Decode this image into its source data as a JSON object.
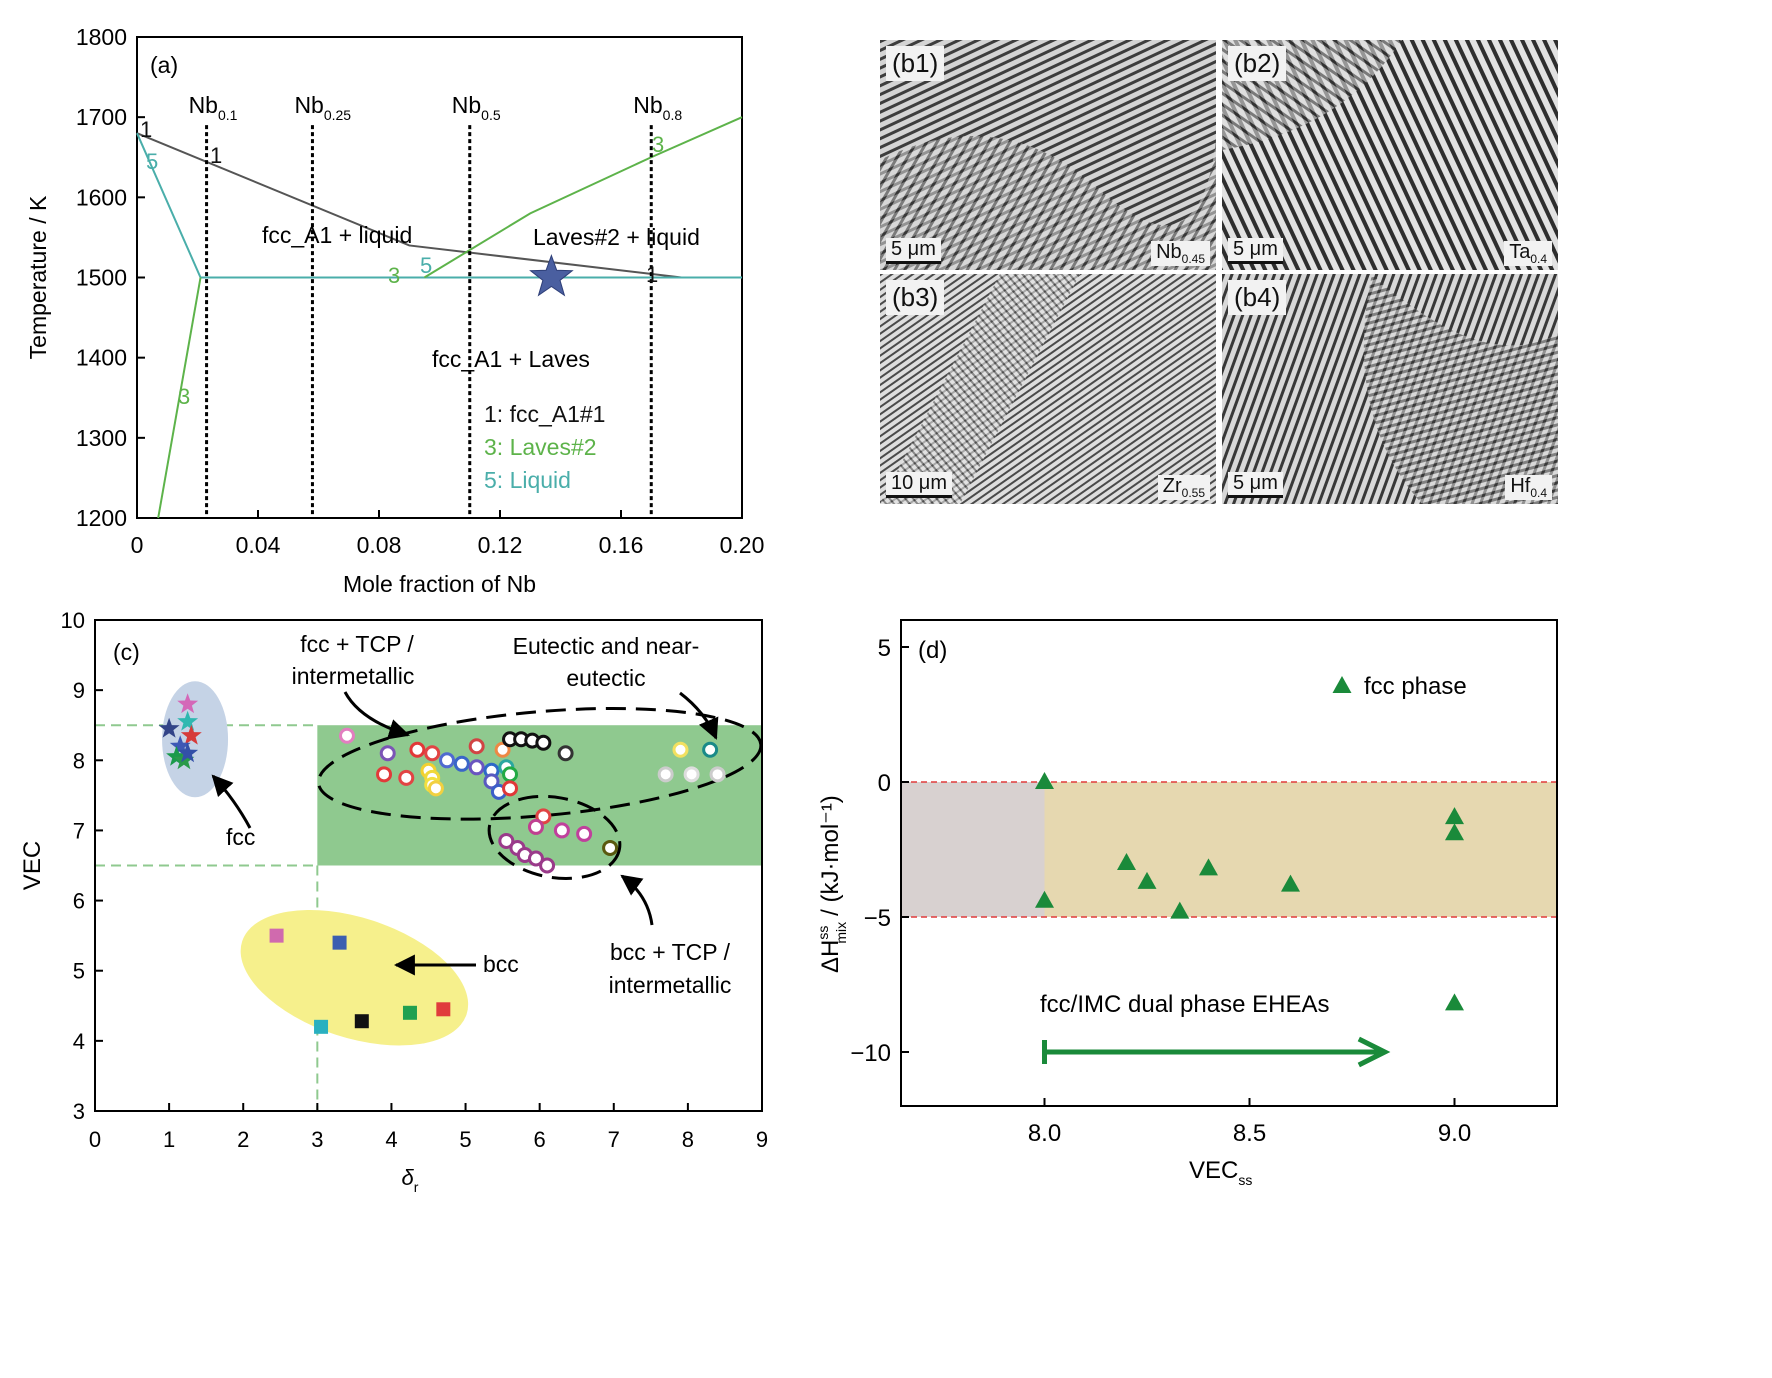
{
  "panel_a": {
    "label": "(a)",
    "ylabel": "Temperature / K",
    "xlabel": "Mole fraction of Nb",
    "xticks": [
      "0",
      "0.04",
      "0.08",
      "0.12",
      "0.16",
      "0.20"
    ],
    "yticks": [
      "1200",
      "1300",
      "1400",
      "1500",
      "1600",
      "1700",
      "1800"
    ],
    "region_labels": [
      "fcc_A1 + liquid",
      "Laves#2 + liquid",
      "fcc_A1 + Laves"
    ],
    "legend": [
      "1: fcc_A1#1",
      "3: Laves#2",
      "5: Liquid"
    ],
    "compositions": [
      {
        "base": "Nb",
        "sub": "0.1"
      },
      {
        "base": "Nb",
        "sub": "0.25"
      },
      {
        "base": "Nb",
        "sub": "0.5"
      },
      {
        "base": "Nb",
        "sub": "0.8"
      }
    ],
    "curve_labels": [
      "1",
      "5",
      "1",
      "3",
      "5",
      "3",
      "3",
      "1"
    ]
  },
  "panel_b": [
    {
      "label": "(b1)",
      "scale": "5 μm",
      "comp": "Nb",
      "sub": "0.45"
    },
    {
      "label": "(b2)",
      "scale": "5 μm",
      "comp": "Ta",
      "sub": "0.4"
    },
    {
      "label": "(b3)",
      "scale": "10 μm",
      "comp": "Zr",
      "sub": "0.55"
    },
    {
      "label": "(b4)",
      "scale": "5 μm",
      "comp": "Hf",
      "sub": "0.4"
    }
  ],
  "panel_c": {
    "label": "(c)",
    "ylabel": "VEC",
    "xlabel_base": "δ",
    "xlabel_sub": "r",
    "xticks": [
      "0",
      "1",
      "2",
      "3",
      "4",
      "5",
      "6",
      "7",
      "8",
      "9"
    ],
    "yticks": [
      "3",
      "4",
      "5",
      "6",
      "7",
      "8",
      "9",
      "10"
    ],
    "annotations": {
      "fcc_tcp": [
        "fcc + TCP /",
        "intermetallic"
      ],
      "eutectic": [
        "Eutectic and near-",
        "eutectic"
      ],
      "fcc": "fcc",
      "bcc": "bcc",
      "bcc_tcp": [
        "bcc + TCP /",
        "intermetallic"
      ]
    }
  },
  "panel_d": {
    "label": "(d)",
    "ylabel_main": "ΔH",
    "ylabel_sup": "ss",
    "ylabel_sub": "mix",
    "ylabel_unit": "/ (kJ·mol⁻¹)",
    "xlabel_main": "VEC",
    "xlabel_sub": "ss",
    "xticks": [
      "8.0",
      "8.5",
      "9.0"
    ],
    "yticks": [
      "5",
      "0",
      "−5",
      "−10"
    ],
    "legend": "fcc phase",
    "arrow_label": "fcc/IMC dual phase EHEAs"
  },
  "chart_data": [
    {
      "type": "line",
      "panel": "a",
      "title": "",
      "xlabel": "Mole fraction of Nb",
      "ylabel": "Temperature / K",
      "xlim": [
        0,
        0.2
      ],
      "ylim": [
        1200,
        1800
      ],
      "series": [
        {
          "name": "1: fcc_A1#1",
          "color": "#555555",
          "x": [
            0,
            0.09,
            0.18
          ],
          "y": [
            1680,
            1540,
            1500
          ]
        },
        {
          "name": "5: Liquid",
          "color": "#4aaeaa",
          "x": [
            0,
            0.021,
            0.2
          ],
          "y": [
            1680,
            1500,
            1500
          ]
        },
        {
          "name": "3: Laves#2",
          "color": "#5db34a",
          "x": [
            0.007,
            0.021
          ],
          "y": [
            1200,
            1500
          ]
        },
        {
          "name": "3: Laves#2",
          "color": "#5db34a",
          "x": [
            0.095,
            0.13,
            0.17,
            0.2
          ],
          "y": [
            1500,
            1580,
            1650,
            1700
          ]
        }
      ],
      "verticals": [
        0.023,
        0.058,
        0.11,
        0.17
      ],
      "marker": {
        "x": 0.137,
        "y": 1500,
        "shape": "star",
        "color": "#4a5fa0"
      }
    },
    {
      "type": "scatter",
      "panel": "c",
      "xlabel": "δr",
      "ylabel": "VEC",
      "xlim": [
        0,
        9
      ],
      "ylim": [
        3,
        10
      ],
      "shaded_region": {
        "x": [
          3,
          9
        ],
        "y": [
          6.5,
          8.5
        ],
        "color": "#8fc98f"
      },
      "guide_lines": {
        "y": [
          8.5,
          6.5
        ],
        "x": [
          3
        ]
      },
      "series": [
        {
          "name": "fcc",
          "marker": "star",
          "points": [
            [
              1.0,
              8.45
            ],
            [
              1.25,
              8.8
            ],
            [
              1.25,
              8.55
            ],
            [
              1.3,
              8.35
            ],
            [
              1.15,
              8.2
            ],
            [
              1.1,
              8.05
            ],
            [
              1.2,
              8.0
            ],
            [
              1.25,
              8.1
            ]
          ]
        },
        {
          "name": "bcc",
          "marker": "square",
          "points": [
            [
              2.45,
              5.5
            ],
            [
              3.3,
              5.4
            ],
            [
              3.05,
              4.2
            ],
            [
              3.6,
              4.28
            ],
            [
              4.25,
              4.4
            ],
            [
              4.7,
              4.45
            ]
          ]
        },
        {
          "name": "fcc + TCP / intermetallic",
          "marker": "circle",
          "points": [
            [
              3.4,
              8.35
            ],
            [
              3.95,
              8.1
            ],
            [
              4.35,
              8.15
            ],
            [
              4.55,
              8.1
            ],
            [
              4.75,
              8.0
            ],
            [
              4.95,
              7.95
            ],
            [
              5.15,
              7.9
            ],
            [
              5.35,
              7.85
            ],
            [
              5.55,
              7.9
            ],
            [
              5.15,
              8.2
            ],
            [
              5.5,
              8.15
            ],
            [
              5.6,
              8.3
            ],
            [
              5.75,
              8.3
            ],
            [
              5.9,
              8.28
            ],
            [
              6.05,
              8.25
            ],
            [
              6.35,
              8.1
            ],
            [
              3.9,
              7.8
            ],
            [
              4.2,
              7.75
            ],
            [
              4.5,
              7.85
            ],
            [
              4.55,
              7.75
            ],
            [
              4.55,
              7.65
            ],
            [
              4.6,
              7.6
            ],
            [
              5.35,
              7.7
            ],
            [
              5.6,
              7.8
            ],
            [
              5.45,
              7.55
            ],
            [
              5.6,
              7.6
            ],
            [
              8.3,
              8.15
            ],
            [
              7.9,
              8.15
            ],
            [
              7.7,
              7.8
            ],
            [
              8.05,
              7.8
            ],
            [
              8.4,
              7.8
            ]
          ]
        },
        {
          "name": "bcc + TCP / intermetallic",
          "marker": "circle",
          "points": [
            [
              6.05,
              7.2
            ],
            [
              5.95,
              7.05
            ],
            [
              6.3,
              7.0
            ],
            [
              6.6,
              6.95
            ],
            [
              5.55,
              6.85
            ],
            [
              5.7,
              6.75
            ],
            [
              5.8,
              6.65
            ],
            [
              5.95,
              6.6
            ],
            [
              6.1,
              6.5
            ],
            [
              6.95,
              6.75
            ]
          ]
        }
      ]
    },
    {
      "type": "scatter",
      "panel": "d",
      "xlabel": "VECss",
      "ylabel": "ΔHmix ss / (kJ·mol⁻¹)",
      "xlim": [
        7.65,
        9.25
      ],
      "ylim": [
        -12,
        6
      ],
      "bands": [
        {
          "x": [
            7.65,
            8.0
          ],
          "y": [
            -5,
            0
          ],
          "color": "#d8d1d0"
        },
        {
          "x": [
            8.0,
            9.25
          ],
          "y": [
            -5,
            0
          ],
          "color": "#e6d8b0"
        }
      ],
      "reference_lines_y": [
        0,
        -5
      ],
      "series": [
        {
          "name": "fcc phase",
          "marker": "triangle",
          "color": "#1a8a3a",
          "points": [
            [
              8.0,
              0.0
            ],
            [
              8.0,
              -4.4
            ],
            [
              8.2,
              -3.0
            ],
            [
              8.25,
              -3.7
            ],
            [
              8.33,
              -4.8
            ],
            [
              8.4,
              -3.2
            ],
            [
              8.6,
              -3.8
            ],
            [
              9.0,
              -1.3
            ],
            [
              9.0,
              -1.9
            ],
            [
              9.0,
              -8.2
            ]
          ]
        }
      ],
      "arrow": {
        "x": [
          8.0,
          8.83
        ],
        "y": -10.0
      }
    }
  ]
}
